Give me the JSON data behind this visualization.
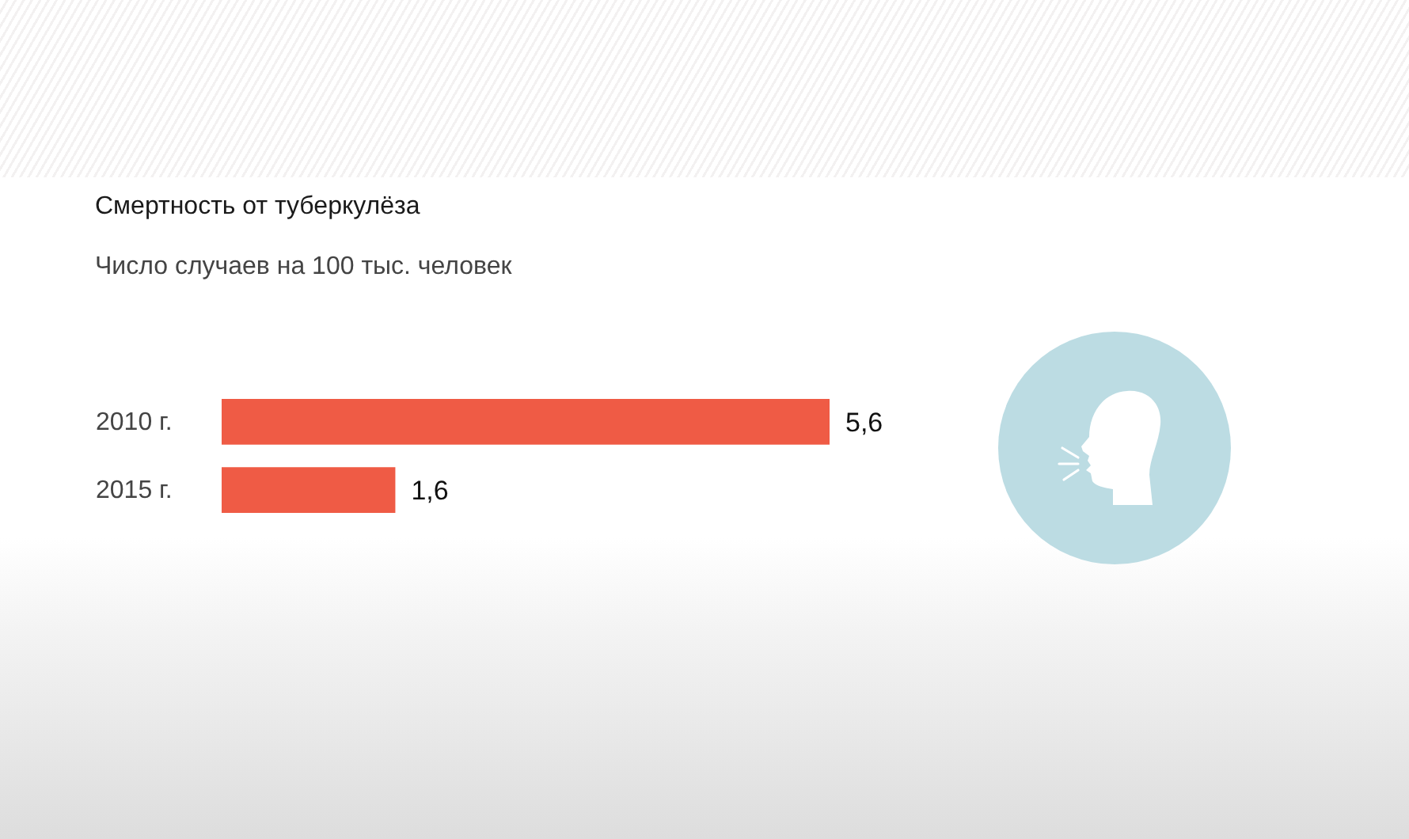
{
  "chart_data": {
    "type": "bar",
    "title": "Смертность от туберкулёза",
    "subtitle": "Число случаев на 100 тыс. человек",
    "categories": [
      "2010 г.",
      "2015 г."
    ],
    "values": [
      5.6,
      1.6
    ],
    "value_labels": [
      "5,6",
      "1,6"
    ],
    "color": "#ef5b45",
    "orientation": "horizontal",
    "tick_labels": "y"
  }
}
